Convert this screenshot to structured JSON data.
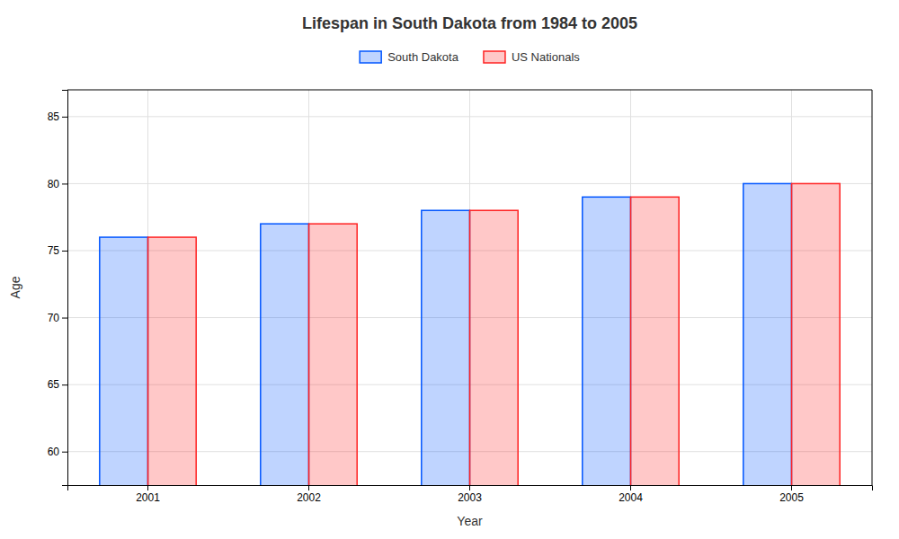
{
  "chart_data": {
    "type": "bar",
    "title": "Lifespan in South Dakota from 1984 to 2005",
    "xlabel": "Year",
    "ylabel": "Age",
    "categories": [
      "2001",
      "2002",
      "2003",
      "2004",
      "2005"
    ],
    "series": [
      {
        "name": "South Dakota",
        "color": "#0055ff",
        "values": [
          76,
          77,
          78,
          79,
          80
        ]
      },
      {
        "name": "US Nationals",
        "color": "#ff2222",
        "values": [
          76,
          77,
          78,
          79,
          80
        ]
      }
    ],
    "ylim": [
      57.5,
      87
    ],
    "yticks": [
      60,
      65,
      70,
      75,
      80,
      85
    ],
    "grid": true,
    "legend": "top"
  }
}
